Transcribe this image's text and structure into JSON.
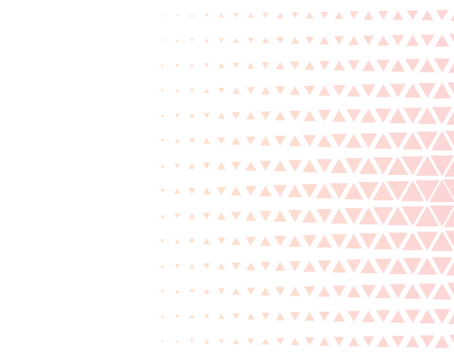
{
  "background": {
    "pattern": "triangle-halftone",
    "color_left": "#fde2cc",
    "color_right": "#fcd6d6",
    "background_color": "#ffffff"
  }
}
